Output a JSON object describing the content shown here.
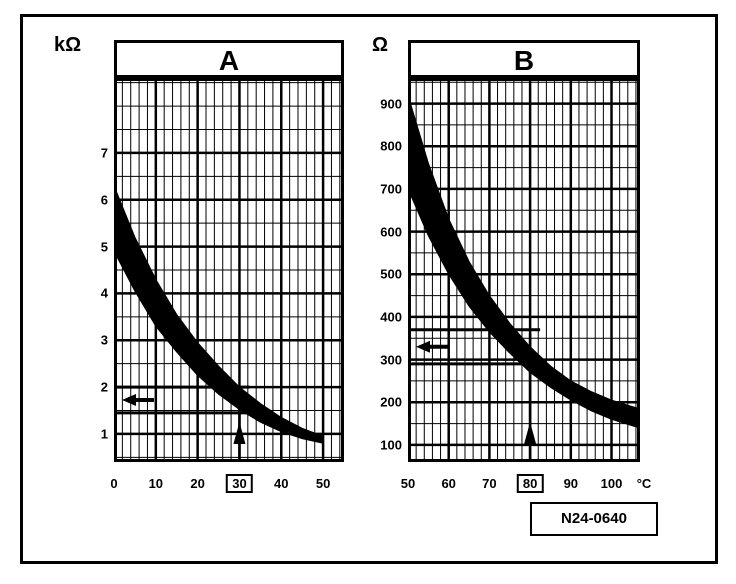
{
  "figure": {
    "reference": "N24-0640"
  },
  "chart_data": [
    {
      "type": "area",
      "title": "A",
      "ylabel": "kΩ",
      "xlabel": "",
      "xlim": [
        0,
        55
      ],
      "ylim": [
        0.4,
        8.6
      ],
      "x_ticks": [
        "0",
        "10",
        "20",
        "30",
        "40",
        "50"
      ],
      "y_ticks": [
        "1",
        "2",
        "3",
        "4",
        "5",
        "6",
        "7"
      ],
      "x_tick_values": [
        0,
        10,
        20,
        30,
        40,
        50
      ],
      "y_tick_values": [
        1,
        2,
        3,
        4,
        5,
        6,
        7
      ],
      "highlighted_x": "30",
      "grid": true,
      "series": [
        {
          "x": [
            0,
            5,
            10,
            15,
            20,
            25,
            30,
            35,
            40,
            45,
            50
          ],
          "upper": [
            6.3,
            5.2,
            4.3,
            3.55,
            2.95,
            2.45,
            2.0,
            1.65,
            1.35,
            1.12,
            0.95
          ],
          "lower": [
            4.9,
            4.05,
            3.3,
            2.75,
            2.25,
            1.85,
            1.52,
            1.25,
            1.05,
            0.9,
            0.8
          ]
        }
      ],
      "reference_band": {
        "low": 1.45,
        "high": 2.0
      },
      "marker": {
        "x": 30,
        "y": 1.75
      }
    },
    {
      "type": "area",
      "title": "B",
      "ylabel": "Ω",
      "xlabel": "",
      "xlim": [
        50,
        107
      ],
      "ylim": [
        60,
        960
      ],
      "x_ticks": [
        "50",
        "60",
        "70",
        "80",
        "90",
        "100",
        "°C"
      ],
      "y_ticks": [
        "100",
        "200",
        "300",
        "400",
        "500",
        "600",
        "700",
        "800",
        "900"
      ],
      "x_tick_values": [
        50,
        60,
        70,
        80,
        90,
        100
      ],
      "y_tick_values": [
        100,
        200,
        300,
        400,
        500,
        600,
        700,
        800,
        900
      ],
      "highlighted_x": "80",
      "grid": true,
      "series": [
        {
          "x": [
            50,
            55,
            60,
            65,
            70,
            75,
            80,
            85,
            90,
            95,
            100,
            105,
            107
          ],
          "upper": [
            920,
            760,
            630,
            530,
            450,
            385,
            330,
            285,
            250,
            225,
            205,
            190,
            185
          ],
          "lower": [
            700,
            590,
            500,
            425,
            365,
            315,
            270,
            235,
            205,
            180,
            160,
            145,
            140
          ]
        }
      ],
      "reference_band": {
        "low": 290,
        "high": 370
      },
      "marker": {
        "x": 80,
        "y": 330
      }
    }
  ]
}
